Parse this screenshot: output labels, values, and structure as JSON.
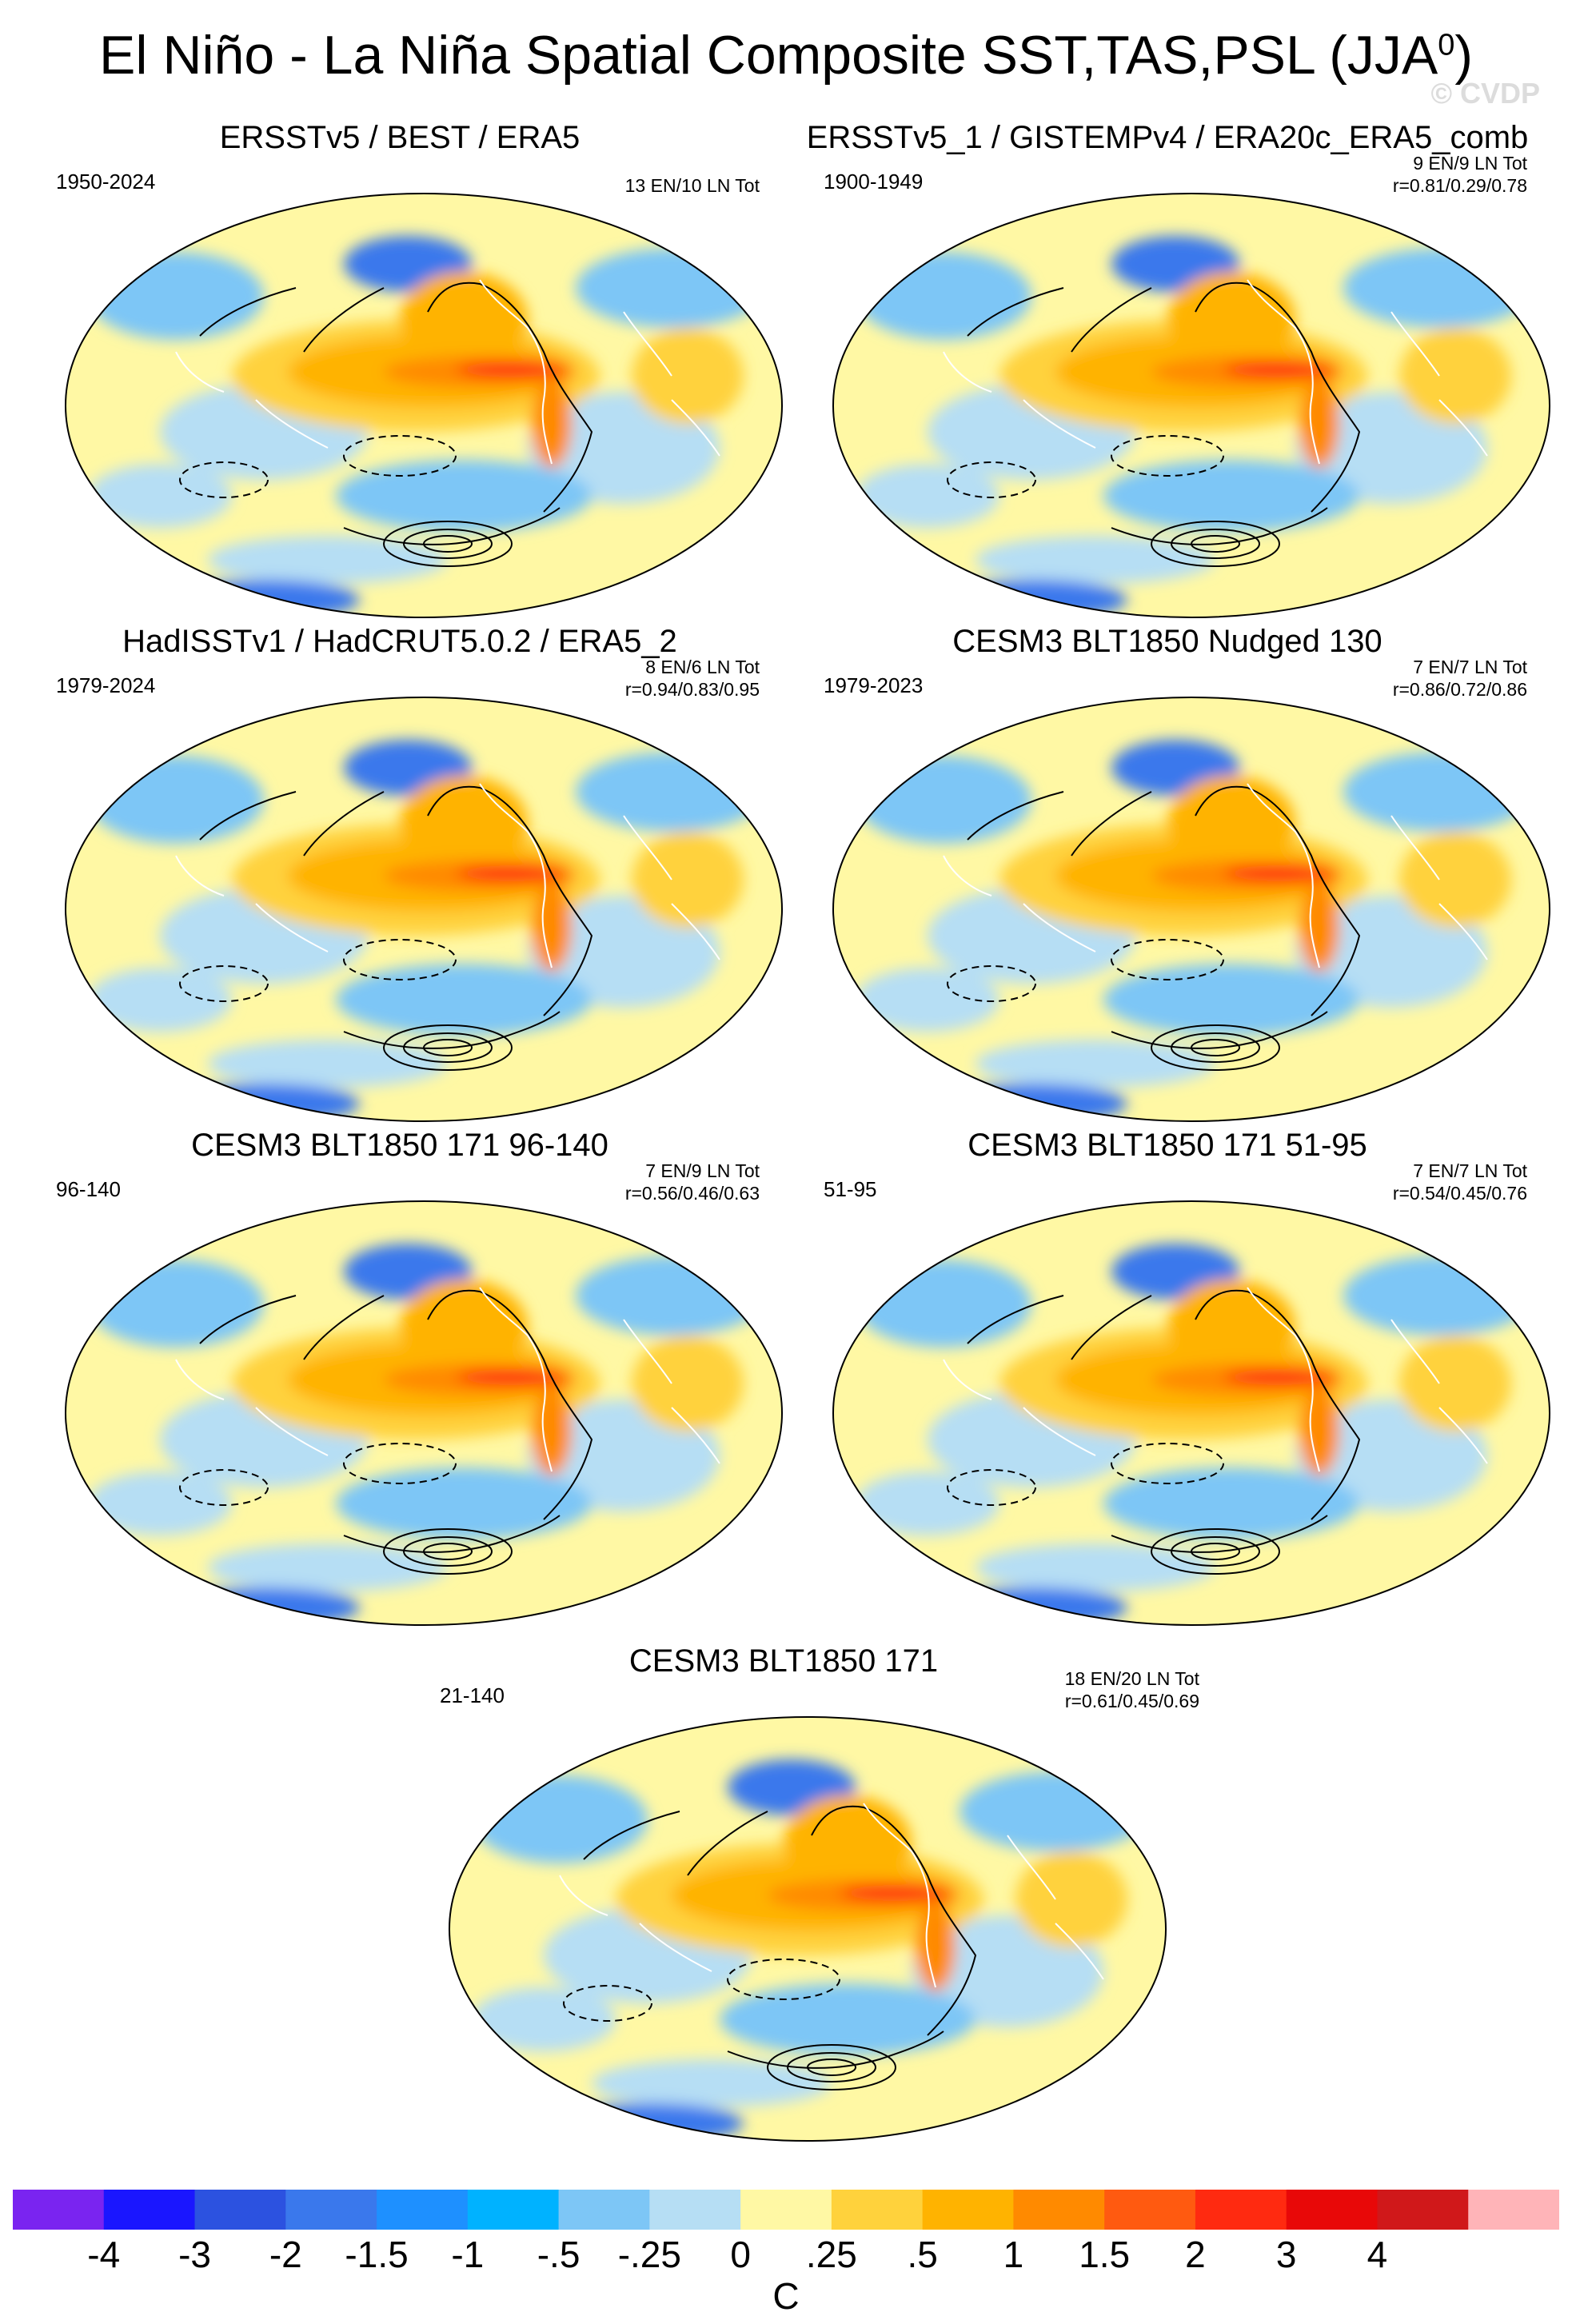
{
  "title": "El Niño - La Niña Spatial Composite SST,TAS,PSL (JJA",
  "title_sup": "0",
  "title_close": ")",
  "watermark": "© CVDP",
  "panels": [
    {
      "title": "ERSSTv5 / BEST / ERA5",
      "years": "1950-2024",
      "count": "13 EN/10 LN Tot",
      "r": ""
    },
    {
      "title": "ERSSTv5_1 / GISTEMPv4 / ERA20c_ERA5_comb",
      "years": "1900-1949",
      "count": "9 EN/9 LN Tot",
      "r": "r=0.81/0.29/0.78"
    },
    {
      "title": "HadISSTv1 / HadCRUT5.0.2 / ERA5_2",
      "years": "1979-2024",
      "count": "8 EN/6 LN Tot",
      "r": "r=0.94/0.83/0.95"
    },
    {
      "title": "CESM3 BLT1850 Nudged 130",
      "years": "1979-2023",
      "count": "7 EN/7 LN Tot",
      "r": "r=0.86/0.72/0.86"
    },
    {
      "title": "CESM3 BLT1850 171 96-140",
      "years": "96-140",
      "count": "7 EN/9 LN Tot",
      "r": "r=0.56/0.46/0.63"
    },
    {
      "title": "CESM3 BLT1850 171 51-95",
      "years": "51-95",
      "count": "7 EN/7 LN Tot",
      "r": "r=0.54/0.45/0.76"
    },
    {
      "title": "CESM3 BLT1850 171",
      "years": "21-140",
      "count": "18 EN/20 LN Tot",
      "r": "r=0.61/0.45/0.69"
    }
  ],
  "colorbar": {
    "colors": [
      "#7a24f0",
      "#1a16ff",
      "#2c52e0",
      "#3a78ec",
      "#1e90ff",
      "#00b2ff",
      "#7dc6f6",
      "#b6def4",
      "#fff8a4",
      "#ffd23c",
      "#ffb300",
      "#ff8a00",
      "#ff5a10",
      "#ff2a10",
      "#e80808",
      "#d0181a",
      "#ffb4b8"
    ],
    "labels": [
      "-4",
      "-3",
      "-2",
      "-1.5",
      "-1",
      "-.5",
      "-.25",
      "0",
      ".25",
      ".5",
      "1",
      "1.5",
      "2",
      "3",
      "4"
    ],
    "unit": "C"
  }
}
